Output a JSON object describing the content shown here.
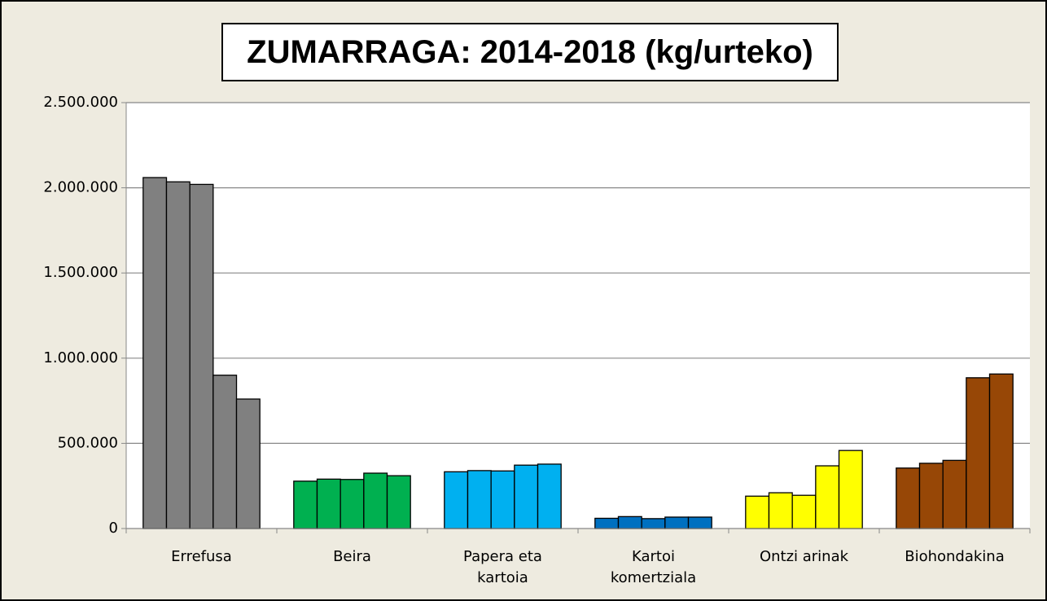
{
  "chart_data": {
    "type": "bar",
    "title": "ZUMARRAGA: 2014-2018 (kg/urteko)",
    "categories": [
      "Errefusa",
      "Beira",
      "Papera eta kartoia",
      "Kartoi komertziala",
      "Ontzi arinak",
      "Biohondakina"
    ],
    "colors": [
      "#808080",
      "#00b050",
      "#00b0f0",
      "#0070c0",
      "#ffff00",
      "#974706"
    ],
    "values": [
      [
        2060000,
        2035000,
        2020000,
        900000,
        760000
      ],
      [
        278000,
        290000,
        288000,
        325000,
        310000
      ],
      [
        333000,
        340000,
        338000,
        372000,
        378000
      ],
      [
        60000,
        70000,
        58000,
        67000,
        67000
      ],
      [
        190000,
        210000,
        195000,
        368000,
        458000
      ],
      [
        355000,
        383000,
        400000,
        885000,
        907000
      ]
    ],
    "ylim": [
      0,
      2500000
    ],
    "yticks": [
      0,
      {
        "value": 500000,
        "label": "500.000"
      },
      {
        "value": 1000000,
        "label": "1.000.000"
      },
      {
        "value": 1500000,
        "label": "1.500.000"
      },
      {
        "value": 2000000,
        "label": "2.000.000"
      },
      {
        "value": 2500000,
        "label": "2.500.000"
      }
    ],
    "grid": true
  }
}
